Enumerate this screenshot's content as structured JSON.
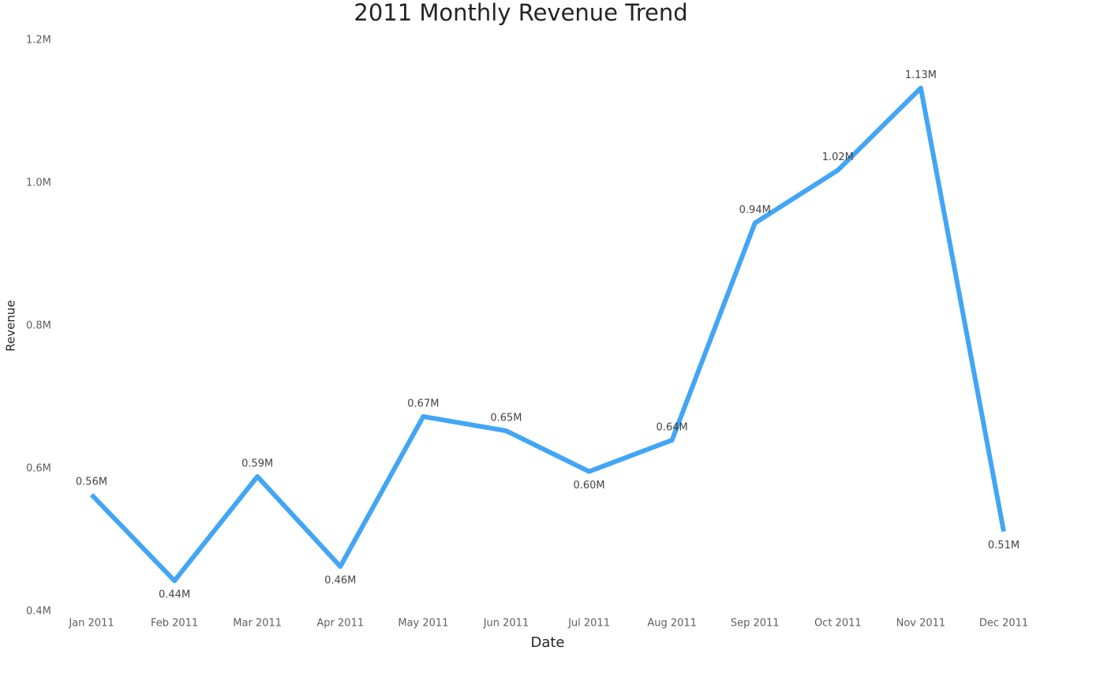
{
  "chart_data": {
    "type": "line",
    "title": "2011 Monthly Revenue Trend",
    "x_label": "Date",
    "y_label": "Revenue",
    "categories": [
      "Jan 2011",
      "Feb 2011",
      "Mar 2011",
      "Apr 2011",
      "May 2011",
      "Jun 2011",
      "Jul 2011",
      "Aug 2011",
      "Sep 2011",
      "Oct 2011",
      "Nov 2011",
      "Dec 2011"
    ],
    "series": [
      {
        "name": "Revenue",
        "color": "#42a5f5",
        "values": [
          563500,
          443000,
          589000,
          463000,
          673000,
          653000,
          596000,
          640000,
          944000,
          1018000,
          1133000,
          512000
        ],
        "value_labels": [
          "0.56M",
          "0.44M",
          "0.59M",
          "0.46M",
          "0.67M",
          "0.65M",
          "0.60M",
          "0.64M",
          "0.94M",
          "1.02M",
          "1.13M",
          "0.51M"
        ]
      }
    ],
    "ylim": [
      400000,
      1200000
    ],
    "yticks": [
      {
        "value": 400000,
        "label": "0.4M"
      },
      {
        "value": 600000,
        "label": "0.6M"
      },
      {
        "value": 800000,
        "label": "0.8M"
      },
      {
        "value": 1000000,
        "label": "1.0M"
      },
      {
        "value": 1200000,
        "label": "1.2M"
      }
    ],
    "grid": false
  }
}
